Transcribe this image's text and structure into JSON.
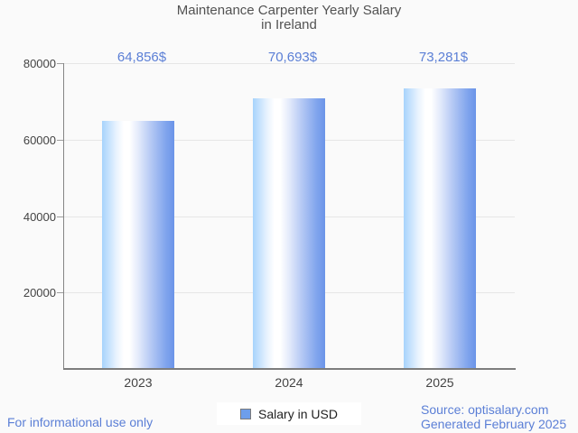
{
  "title": {
    "line1": "Maintenance Carpenter Yearly Salary",
    "line2": "in Ireland"
  },
  "chart_data": {
    "type": "bar",
    "categories": [
      "2023",
      "2024",
      "2025"
    ],
    "values": [
      64856,
      70693,
      73281
    ],
    "value_labels": [
      "64,856$",
      "70,693$",
      "73,281$"
    ],
    "series": [
      {
        "name": "Salary in USD",
        "values": [
          64856,
          70693,
          73281
        ]
      }
    ],
    "title": "Maintenance Carpenter Yearly Salary in Ireland",
    "xlabel": "",
    "ylabel": "",
    "ylim": [
      0,
      80000
    ],
    "yticks": [
      20000,
      40000,
      60000,
      80000
    ],
    "ytick_labels": [
      "20000",
      "40000",
      "60000",
      "80000"
    ],
    "grid": true,
    "legend_position": "bottom"
  },
  "legend": {
    "label": "Salary in USD",
    "marker_color": "#6d9eeb"
  },
  "footer": {
    "left": "For informational use only",
    "source": "Source: optisalary.com",
    "generated": "Generated February 2025"
  },
  "colors": {
    "background": "#fafafa",
    "bar_gradient_left": "#a7d3fc",
    "bar_gradient_highlight": "#ffffff",
    "bar_gradient_right": "#6b94e8",
    "value_label_text": "#5b7fd6",
    "footer_text": "#5b7fd6",
    "title_text": "#525252",
    "axis_text": "#434343",
    "gridline": "#e6e6e6",
    "axis_line": "#7d7d7d"
  }
}
